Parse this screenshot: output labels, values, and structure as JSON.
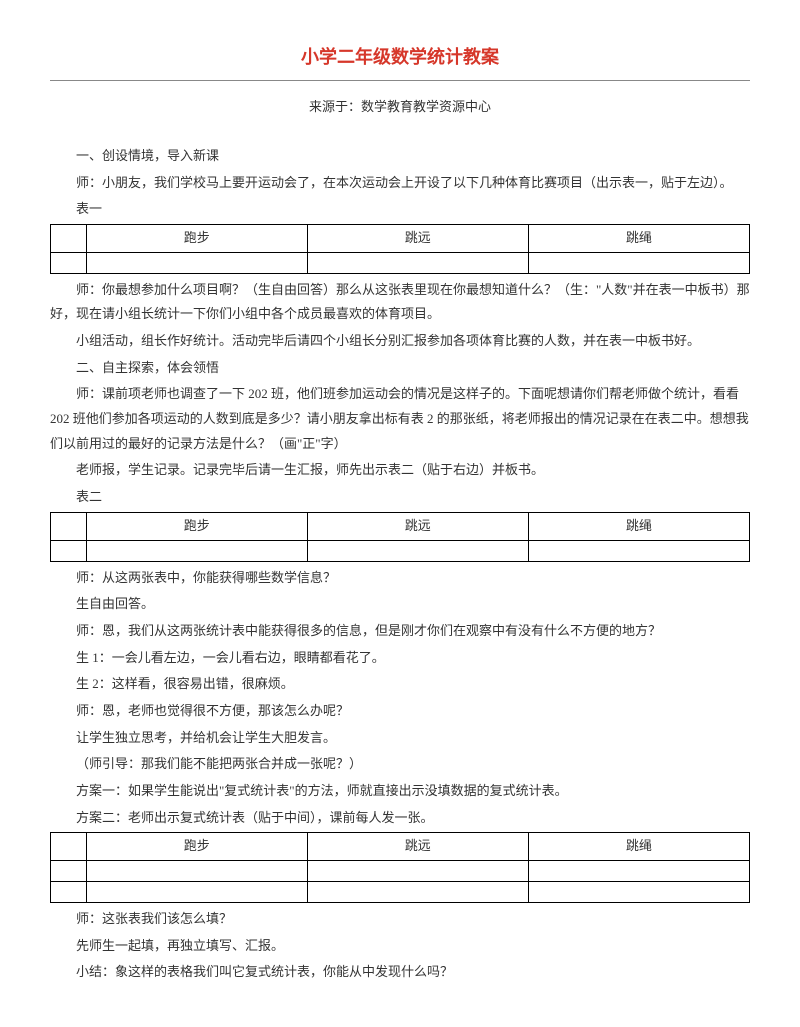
{
  "title": "小学二年级数学统计教案",
  "source": "来源于：数学教育教学资源中心",
  "section1_header": "一、创设情境，导入新课",
  "p1": "师：小朋友，我们学校马上要开运动会了，在本次运动会上开设了以下几种体育比赛项目（出示表一，贴于左边）。",
  "table1_caption": "表一",
  "table_headers": [
    "",
    "跑步",
    "跳远",
    "跳绳"
  ],
  "p2": "师：你最想参加什么项目啊？（生自由回答）那么从这张表里现在你最想知道什么？（生：\"人数\"并在表一中板书）那好，现在请小组长统计一下你们小组中各个成员最喜欢的体育项目。",
  "p3": "小组活动，组长作好统计。活动完毕后请四个小组长分别汇报参加各项体育比赛的人数，并在表一中板书好。",
  "section2_header": "二、自主探索，体会领悟",
  "p4": "师：课前项老师也调查了一下 202 班，他们班参加运动会的情况是这样子的。下面呢想请你们帮老师做个统计，看看 202 班他们参加各项运动的人数到底是多少？请小朋友拿出标有表 2 的那张纸，将老师报出的情况记录在在表二中。想想我们以前用过的最好的记录方法是什么？（画\"正\"字）",
  "p5": "老师报，学生记录。记录完毕后请一生汇报，师先出示表二（贴于右边）并板书。",
  "table2_caption": "表二",
  "p6": "师：从这两张表中，你能获得哪些数学信息？",
  "p7": "生自由回答。",
  "p8": "师：恩，我们从这两张统计表中能获得很多的信息，但是刚才你们在观察中有没有什么不方便的地方？",
  "p9": "生 1：一会儿看左边，一会儿看右边，眼睛都看花了。",
  "p10": "生 2：这样看，很容易出错，很麻烦。",
  "p11": "师：恩，老师也觉得很不方便，那该怎么办呢？",
  "p12": "让学生独立思考，并给机会让学生大胆发言。",
  "p13": "（师引导：那我们能不能把两张合并成一张呢？）",
  "p14": "方案一：如果学生能说出\"复式统计表\"的方法，师就直接出示没填数据的复式统计表。",
  "p15": "方案二：老师出示复式统计表（贴于中间），课前每人发一张。",
  "p16": "师：这张表我们该怎么填？",
  "p17": "先师生一起填，再独立填写、汇报。",
  "p18": "小结：象这样的表格我们叫它复式统计表，你能从中发现什么吗？"
}
